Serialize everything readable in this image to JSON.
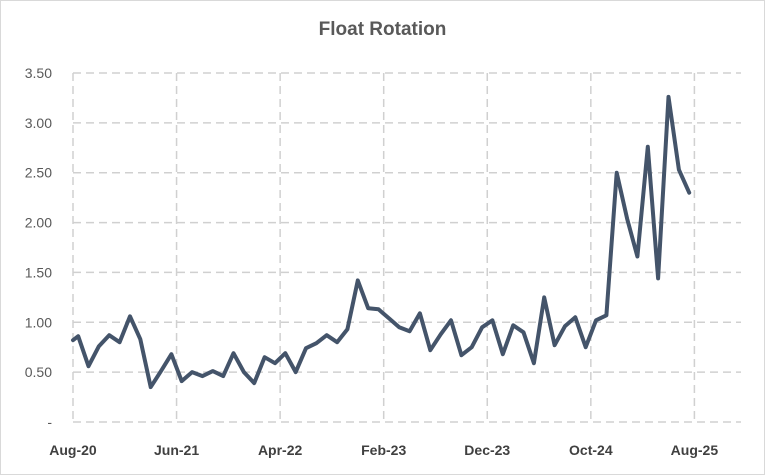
{
  "chart_data": {
    "type": "line",
    "title": "Float Rotation",
    "xlabel": "",
    "ylabel": "",
    "ylim": [
      0,
      3.5
    ],
    "y_tick_labels": [
      "-",
      "0.50",
      "1.00",
      "1.50",
      "2.00",
      "2.50",
      "3.00",
      "3.50"
    ],
    "y_tick_values": [
      0,
      0.5,
      1.0,
      1.5,
      2.0,
      2.5,
      3.0,
      3.5
    ],
    "x_tick_labels": [
      "Aug-20",
      "Jun-21",
      "Apr-22",
      "Feb-23",
      "Dec-23",
      "Oct-24",
      "Aug-25"
    ],
    "x_tick_index": [
      0,
      10,
      20,
      30,
      40,
      50,
      60
    ],
    "grid": true,
    "grid_style": "dashed",
    "line_color": "#44546a",
    "x_range": [
      0,
      60
    ],
    "series": [
      {
        "x": [
          0,
          0.5,
          1.5,
          2.5,
          3.5,
          4.5,
          5.5,
          6.5,
          7.5,
          8.5,
          9.5,
          10.5,
          11.5,
          12.5,
          13.5,
          14.5,
          15.5,
          16.5,
          17.5,
          18.5,
          19.5,
          20.5,
          21.5,
          22.5,
          23.5,
          24.5,
          25.5,
          26.5,
          27.5,
          28.5,
          29.5,
          30.5,
          31.5,
          32.5,
          33.5,
          34.5,
          35.5,
          36.5,
          37.5,
          38.5,
          39.5,
          40.5,
          41.5,
          42.5,
          43.5,
          44.5,
          45.5,
          46.5,
          47.5,
          48.5,
          49.5,
          50.5,
          51.5,
          52.5,
          53.5,
          54.5,
          55.5,
          56.5,
          57.5,
          58.5,
          59.5
        ],
        "values": [
          0.82,
          0.86,
          0.56,
          0.76,
          0.87,
          0.8,
          1.06,
          0.83,
          0.35,
          0.51,
          0.68,
          0.41,
          0.5,
          0.46,
          0.51,
          0.46,
          0.69,
          0.5,
          0.39,
          0.65,
          0.59,
          0.69,
          0.5,
          0.74,
          0.79,
          0.87,
          0.8,
          0.93,
          1.42,
          1.14,
          1.13,
          1.04,
          0.95,
          0.91,
          1.09,
          0.72,
          0.88,
          1.02,
          0.67,
          0.75,
          0.95,
          1.02,
          0.68,
          0.97,
          0.9,
          0.59,
          1.25,
          0.77,
          0.96,
          1.05,
          0.75,
          1.02,
          1.07,
          2.5,
          2.04,
          1.66,
          2.76,
          1.44,
          3.26,
          2.53,
          2.3
        ]
      }
    ]
  }
}
